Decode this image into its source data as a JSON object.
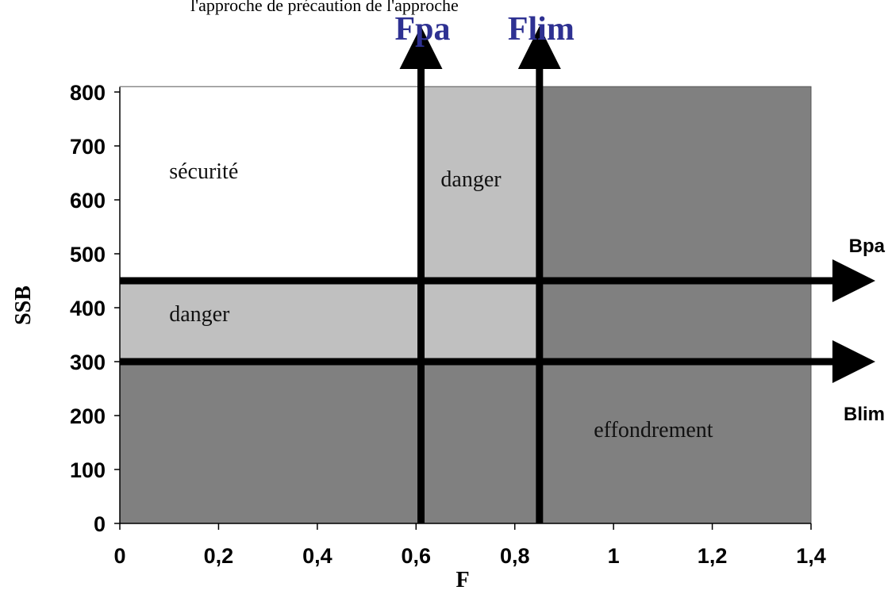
{
  "chart_data": {
    "type": "area",
    "top_caption": "l'approche de précaution de l'approche",
    "xlabel": "F",
    "ylabel": "SSB",
    "xlim": [
      0,
      1.4
    ],
    "ylim": [
      0,
      800
    ],
    "x_ticks": [
      {
        "value": 0,
        "label": "0"
      },
      {
        "value": 0.2,
        "label": "0,2"
      },
      {
        "value": 0.4,
        "label": "0,4"
      },
      {
        "value": 0.6,
        "label": "0,6"
      },
      {
        "value": 0.8,
        "label": "0,8"
      },
      {
        "value": 1.0,
        "label": "1"
      },
      {
        "value": 1.2,
        "label": "1,2"
      },
      {
        "value": 1.4,
        "label": "1,4"
      }
    ],
    "y_ticks": [
      {
        "value": 0,
        "label": "0"
      },
      {
        "value": 100,
        "label": "100"
      },
      {
        "value": 200,
        "label": "200"
      },
      {
        "value": 300,
        "label": "300"
      },
      {
        "value": 400,
        "label": "400"
      },
      {
        "value": 500,
        "label": "500"
      },
      {
        "value": 600,
        "label": "600"
      },
      {
        "value": 700,
        "label": "700"
      },
      {
        "value": 800,
        "label": "800"
      }
    ],
    "reference_lines": {
      "vertical": [
        {
          "name": "Fpa",
          "value": 0.61
        },
        {
          "name": "Flim",
          "value": 0.85
        }
      ],
      "horizontal": [
        {
          "name": "Bpa",
          "value": 450
        },
        {
          "name": "Blim",
          "value": 300
        }
      ]
    },
    "regions": [
      {
        "id": "securite",
        "x0": 0,
        "x1": 0.61,
        "y0": 450,
        "y1": 810,
        "color": "#ffffff"
      },
      {
        "id": "danger-top",
        "x0": 0.61,
        "x1": 0.85,
        "y0": 300,
        "y1": 810,
        "color": "#c0c0c0"
      },
      {
        "id": "danger-left",
        "x0": 0,
        "x1": 0.61,
        "y0": 300,
        "y1": 450,
        "color": "#c0c0c0"
      },
      {
        "id": "collapse-right",
        "x0": 0.85,
        "x1": 1.4,
        "y0": 0,
        "y1": 810,
        "color": "#808080"
      },
      {
        "id": "collapse-bottom",
        "x0": 0,
        "x1": 0.85,
        "y0": 0,
        "y1": 300,
        "color": "#808080"
      }
    ],
    "region_labels": [
      {
        "text": "sécurité",
        "x": 0.1,
        "y": 640
      },
      {
        "text": "danger",
        "x": 0.65,
        "y": 625
      },
      {
        "text": "danger",
        "x": 0.1,
        "y": 375
      },
      {
        "text": "effondrement",
        "x": 0.96,
        "y": 160
      }
    ],
    "grid": false,
    "legend": "none",
    "colors": {
      "safe": "#ffffff",
      "danger": "#c0c0c0",
      "collapse": "#808080",
      "reference_line": "#000000",
      "vertical_label": "#2e3192"
    }
  }
}
